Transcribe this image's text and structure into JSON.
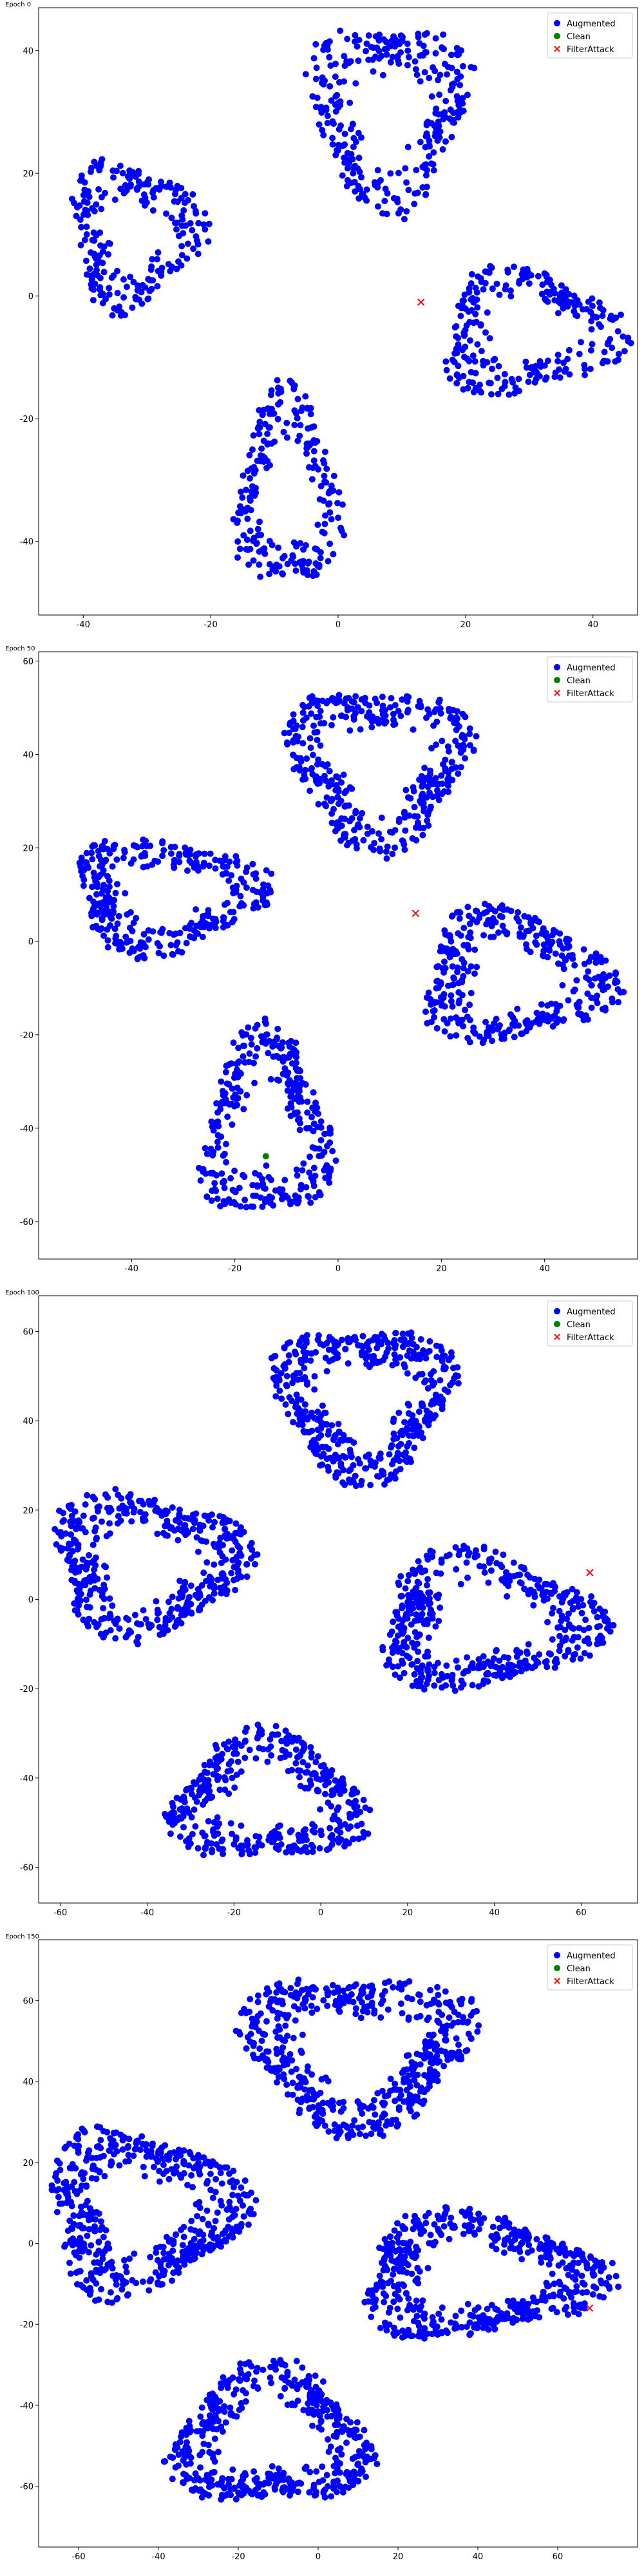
{
  "chart_data": [
    {
      "type": "scatter",
      "title": "Epoch 0",
      "xlim": [
        -47,
        47
      ],
      "ylim": [
        -52,
        47
      ],
      "xticks": [
        -40,
        -20,
        0,
        20,
        40
      ],
      "yticks": [
        -40,
        -20,
        0,
        20,
        40
      ],
      "legend": "top-right",
      "series": [
        {
          "name": "Augmented",
          "color": "#0000ff",
          "marker": "circle",
          "clusters": [
            {
              "cx": 8,
              "cy": 30,
              "rx": 12,
              "ry": 15,
              "n": 300,
              "ring": true
            },
            {
              "cx": -32,
              "cy": 10,
              "rx": 10,
              "ry": 12,
              "n": 230,
              "ring": true
            },
            {
              "cx": 30,
              "cy": -6,
              "rx": 14,
              "ry": 10,
              "n": 260,
              "ring": true
            },
            {
              "cx": -8,
              "cy": -32,
              "rx": 8,
              "ry": 16,
              "n": 230,
              "ring": true
            }
          ]
        },
        {
          "name": "Clean",
          "color": "#008000",
          "marker": "circle",
          "points": []
        },
        {
          "name": "FilterAttack",
          "color": "#ff0000",
          "marker": "x",
          "points": [
            [
              13,
              -1
            ]
          ]
        }
      ]
    },
    {
      "type": "scatter",
      "title": "Epoch 50",
      "xlim": [
        -58,
        58
      ],
      "ylim": [
        -68,
        62
      ],
      "xticks": [
        -40,
        -20,
        0,
        20,
        40
      ],
      "yticks": [
        -60,
        -40,
        -20,
        0,
        20,
        40,
        60
      ],
      "legend": "top-right",
      "series": [
        {
          "name": "Augmented",
          "color": "#0000ff",
          "marker": "circle",
          "clusters": [
            {
              "cx": 8,
              "cy": 38,
              "rx": 17,
              "ry": 17,
              "n": 380,
              "ring": true
            },
            {
              "cx": -33,
              "cy": 10,
              "rx": 18,
              "ry": 12,
              "n": 330,
              "ring": true
            },
            {
              "cx": 34,
              "cy": -8,
              "rx": 18,
              "ry": 14,
              "n": 360,
              "ring": true
            },
            {
              "cx": -14,
              "cy": -40,
              "rx": 12,
              "ry": 20,
              "n": 330,
              "ring": true
            }
          ]
        },
        {
          "name": "Clean",
          "color": "#008000",
          "marker": "circle",
          "points": [
            [
              -14,
              -46
            ]
          ]
        },
        {
          "name": "FilterAttack",
          "color": "#ff0000",
          "marker": "x",
          "points": [
            [
              15,
              6
            ]
          ]
        }
      ]
    },
    {
      "type": "scatter",
      "title": "Epoch 100",
      "xlim": [
        -65,
        73
      ],
      "ylim": [
        -68,
        68
      ],
      "xticks": [
        -60,
        -40,
        -20,
        0,
        20,
        40,
        60
      ],
      "yticks": [
        -60,
        -40,
        -20,
        0,
        20,
        40,
        60
      ],
      "legend": "top-right",
      "series": [
        {
          "name": "Augmented",
          "color": "#0000ff",
          "marker": "circle",
          "clusters": [
            {
              "cx": 10,
              "cy": 45,
              "rx": 20,
              "ry": 17,
              "n": 460,
              "ring": true
            },
            {
              "cx": -40,
              "cy": 8,
              "rx": 22,
              "ry": 16,
              "n": 440,
              "ring": true
            },
            {
              "cx": 38,
              "cy": -5,
              "rx": 25,
              "ry": 15,
              "n": 460,
              "ring": true
            },
            {
              "cx": -12,
              "cy": -45,
              "rx": 22,
              "ry": 14,
              "n": 400,
              "ring": true
            }
          ]
        },
        {
          "name": "Clean",
          "color": "#008000",
          "marker": "circle",
          "points": []
        },
        {
          "name": "FilterAttack",
          "color": "#ff0000",
          "marker": "x",
          "points": [
            [
              62,
              6
            ]
          ]
        }
      ]
    },
    {
      "type": "scatter",
      "title": "Epoch 150",
      "xlim": [
        -70,
        80
      ],
      "ylim": [
        -75,
        75
      ],
      "xticks": [
        -60,
        -40,
        -20,
        0,
        20,
        40,
        60
      ],
      "yticks": [
        -60,
        -40,
        -20,
        0,
        20,
        40,
        60
      ],
      "legend": "top-right",
      "series": [
        {
          "name": "Augmented",
          "color": "#0000ff",
          "marker": "circle",
          "clusters": [
            {
              "cx": 10,
              "cy": 48,
              "rx": 28,
              "ry": 19,
              "n": 540,
              "ring": true
            },
            {
              "cx": -44,
              "cy": 8,
              "rx": 24,
              "ry": 20,
              "n": 520,
              "ring": true
            },
            {
              "cx": 40,
              "cy": -8,
              "rx": 30,
              "ry": 15,
              "n": 540,
              "ring": true
            },
            {
              "cx": -12,
              "cy": -48,
              "rx": 24,
              "ry": 17,
              "n": 480,
              "ring": true
            }
          ]
        },
        {
          "name": "Clean",
          "color": "#008000",
          "marker": "circle",
          "points": []
        },
        {
          "name": "FilterAttack",
          "color": "#ff0000",
          "marker": "x",
          "points": [
            [
              68,
              -16
            ]
          ]
        }
      ]
    }
  ]
}
